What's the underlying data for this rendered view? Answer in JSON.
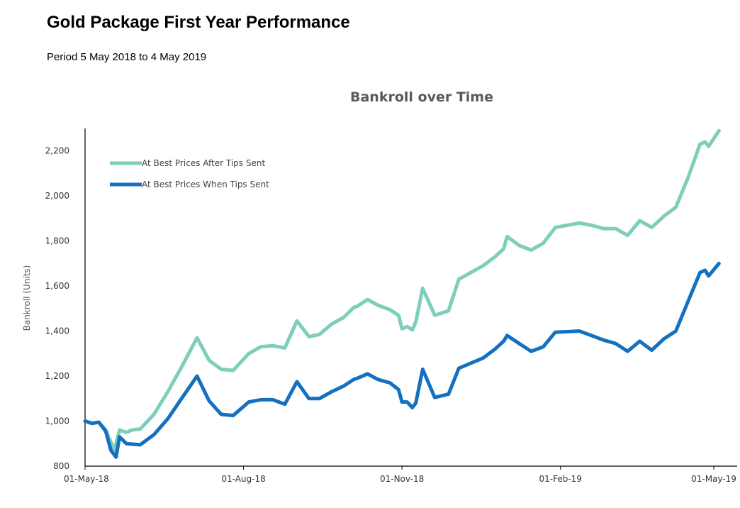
{
  "heading": "Gold Package First Year Performance",
  "period": "Period 5 May 2018 to 4 May 2019",
  "chart_data": {
    "type": "line",
    "title": "Bankroll over Time",
    "xlabel": "",
    "ylabel": "Bankroll (Units)",
    "ylim": [
      800,
      2300
    ],
    "xlim": [
      "2018-05-01",
      "2019-05-15"
    ],
    "yticks": [
      800,
      1000,
      1200,
      1400,
      1600,
      1800,
      2000,
      2200
    ],
    "ytick_labels": [
      "800",
      "1,000",
      "1,200",
      "1,400",
      "1,600",
      "1,800",
      "2,000",
      "2,200"
    ],
    "xticks": [
      "2018-05-01",
      "2018-08-01",
      "2018-11-01",
      "2019-02-01",
      "2019-05-01"
    ],
    "xtick_labels": [
      "01-May-18",
      "01-Aug-18",
      "01-Nov-18",
      "01-Feb-19",
      "01-May-19"
    ],
    "grid": false,
    "legend_position": "top-left",
    "series": [
      {
        "name": "At Best Prices After Tips Sent",
        "color": "#7fcdbb",
        "x": [
          "2018-05-01",
          "2018-05-05",
          "2018-05-09",
          "2018-05-13",
          "2018-05-18",
          "2018-05-21",
          "2018-05-25",
          "2018-05-28",
          "2018-06-02",
          "2018-06-10",
          "2018-06-18",
          "2018-06-26",
          "2018-07-05",
          "2018-07-12",
          "2018-07-19",
          "2018-07-26",
          "2018-08-04",
          "2018-08-11",
          "2018-08-18",
          "2018-08-25",
          "2018-09-01",
          "2018-09-08",
          "2018-09-14",
          "2018-09-21",
          "2018-09-28",
          "2018-10-04",
          "2018-10-06",
          "2018-10-12",
          "2018-10-18",
          "2018-10-25",
          "2018-10-30",
          "2018-11-01",
          "2018-11-04",
          "2018-11-07",
          "2018-11-09",
          "2018-11-13",
          "2018-11-20",
          "2018-11-28",
          "2018-12-04",
          "2018-12-18",
          "2018-12-25",
          "2018-12-30",
          "2019-01-01",
          "2019-01-08",
          "2019-01-15",
          "2019-01-22",
          "2019-01-29",
          "2019-02-12",
          "2019-02-19",
          "2019-02-26",
          "2019-03-05",
          "2019-03-12",
          "2019-03-19",
          "2019-03-26",
          "2019-04-02",
          "2019-04-09",
          "2019-04-16",
          "2019-04-23",
          "2019-04-26",
          "2019-04-28",
          "2019-05-04"
        ],
        "values": [
          1000,
          990,
          995,
          960,
          870,
          960,
          950,
          960,
          965,
          1030,
          1130,
          1240,
          1370,
          1270,
          1230,
          1225,
          1300,
          1330,
          1335,
          1325,
          1445,
          1375,
          1385,
          1430,
          1460,
          1505,
          1510,
          1540,
          1515,
          1495,
          1470,
          1410,
          1420,
          1405,
          1440,
          1590,
          1470,
          1490,
          1630,
          1690,
          1730,
          1765,
          1820,
          1780,
          1760,
          1790,
          1860,
          1880,
          1870,
          1855,
          1855,
          1825,
          1890,
          1860,
          1910,
          1950,
          2080,
          2230,
          2240,
          2220,
          2290
        ]
      },
      {
        "name": "At Best Prices When Tips Sent",
        "color": "#1470c0",
        "x": [
          "2018-05-01",
          "2018-05-05",
          "2018-05-09",
          "2018-05-13",
          "2018-05-16",
          "2018-05-19",
          "2018-05-21",
          "2018-05-25",
          "2018-06-02",
          "2018-06-10",
          "2018-06-18",
          "2018-06-26",
          "2018-07-05",
          "2018-07-12",
          "2018-07-19",
          "2018-07-26",
          "2018-08-04",
          "2018-08-11",
          "2018-08-18",
          "2018-08-25",
          "2018-09-01",
          "2018-09-08",
          "2018-09-14",
          "2018-09-21",
          "2018-09-28",
          "2018-10-04",
          "2018-10-06",
          "2018-10-12",
          "2018-10-18",
          "2018-10-25",
          "2018-10-30",
          "2018-11-01",
          "2018-11-04",
          "2018-11-07",
          "2018-11-09",
          "2018-11-13",
          "2018-11-20",
          "2018-11-28",
          "2018-12-04",
          "2018-12-18",
          "2018-12-25",
          "2018-12-30",
          "2019-01-01",
          "2019-01-08",
          "2019-01-15",
          "2019-01-22",
          "2019-01-29",
          "2019-02-12",
          "2019-02-19",
          "2019-02-26",
          "2019-03-05",
          "2019-03-12",
          "2019-03-19",
          "2019-03-26",
          "2019-04-02",
          "2019-04-09",
          "2019-04-16",
          "2019-04-23",
          "2019-04-26",
          "2019-04-28",
          "2019-05-04"
        ],
        "values": [
          1000,
          990,
          995,
          955,
          870,
          840,
          930,
          900,
          895,
          940,
          1010,
          1100,
          1200,
          1090,
          1030,
          1025,
          1085,
          1095,
          1095,
          1075,
          1175,
          1100,
          1100,
          1130,
          1155,
          1185,
          1190,
          1210,
          1185,
          1170,
          1140,
          1085,
          1085,
          1060,
          1080,
          1230,
          1105,
          1120,
          1235,
          1280,
          1320,
          1355,
          1380,
          1345,
          1310,
          1330,
          1395,
          1400,
          1380,
          1360,
          1345,
          1310,
          1355,
          1315,
          1365,
          1400,
          1530,
          1660,
          1670,
          1645,
          1700
        ]
      }
    ]
  }
}
